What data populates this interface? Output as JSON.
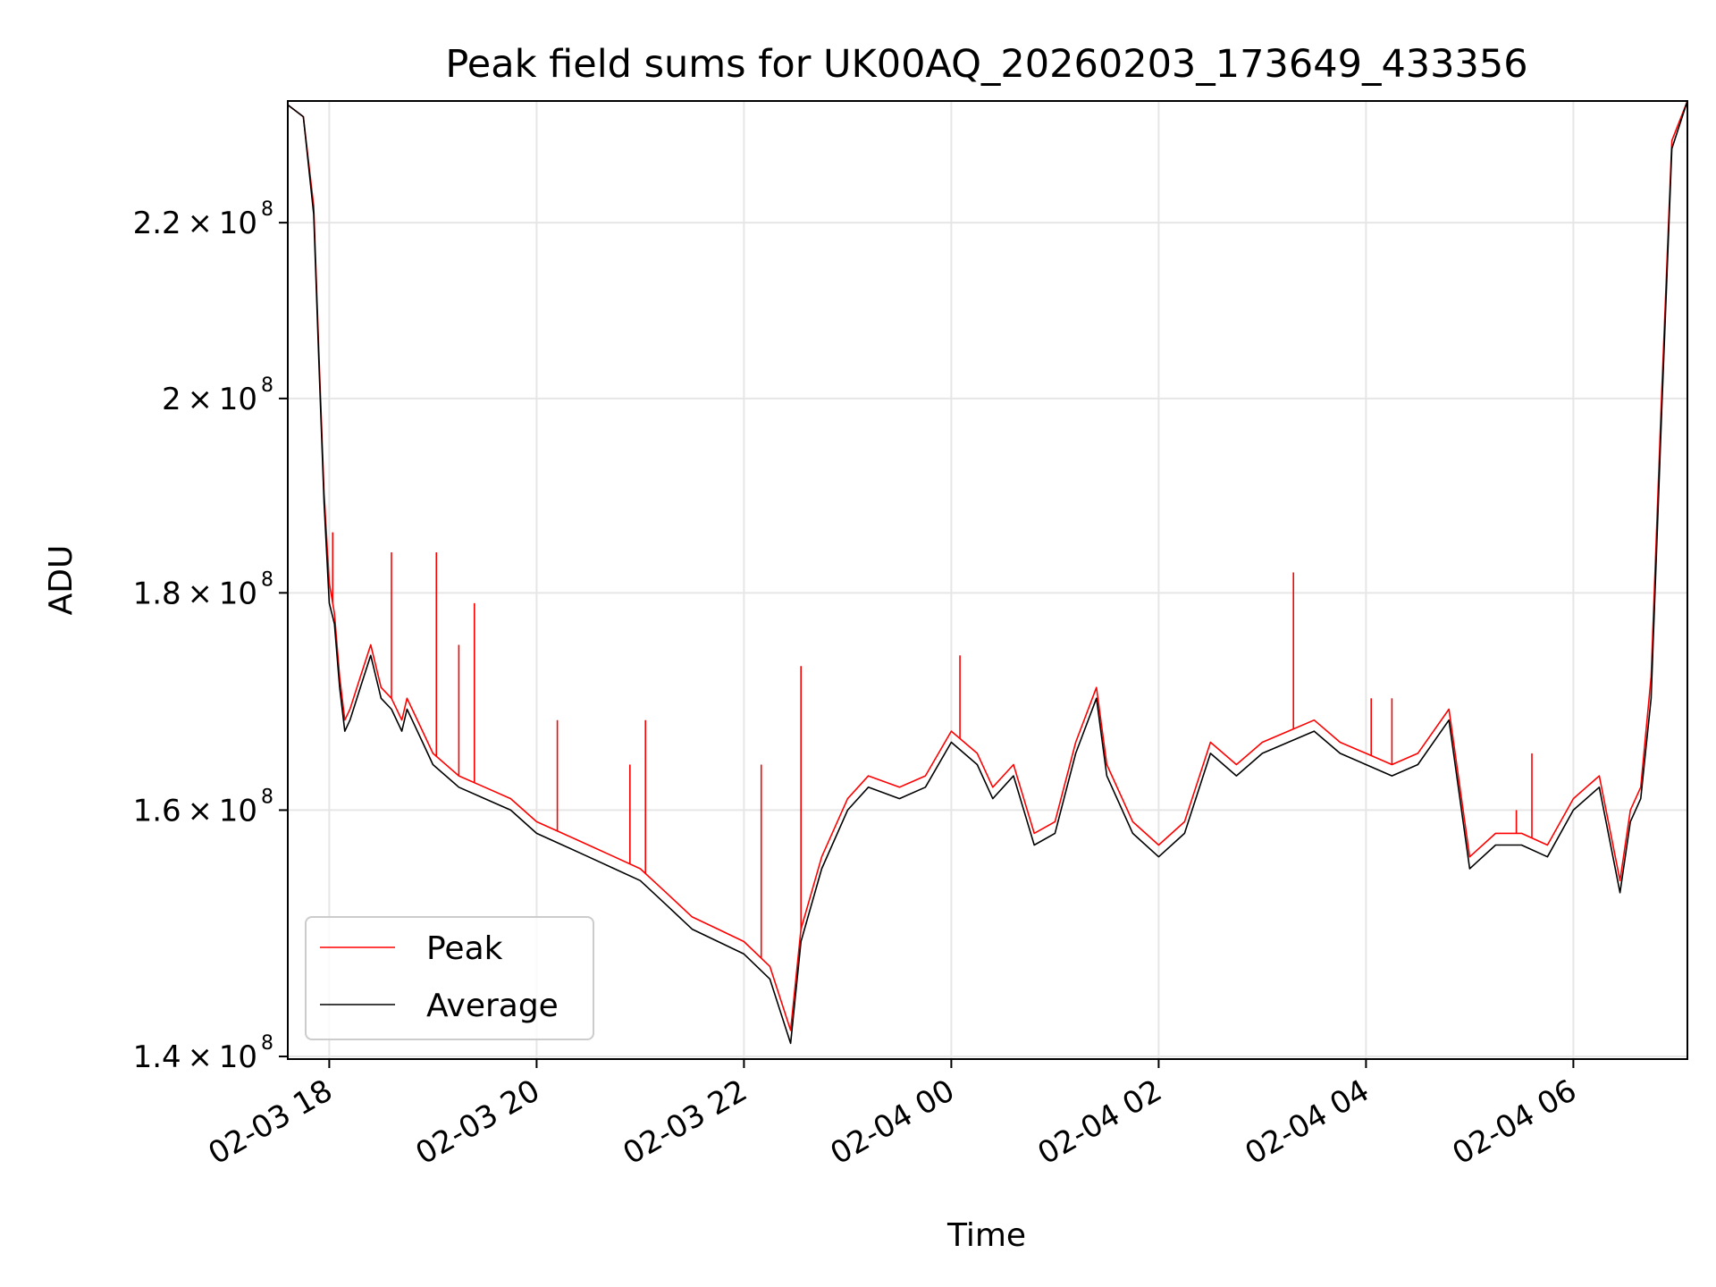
{
  "chart_data": {
    "type": "line",
    "title": "Peak field sums for UK00AQ_20260203_173649_433356",
    "xlabel": "Time",
    "ylabel": "ADU",
    "y_scale": "log",
    "ylim": [
      139800000,
      235000000
    ],
    "xlim": [
      "2026-02-03 17:36",
      "2026-02-04 07:06"
    ],
    "grid": true,
    "legend_position": "lower-left",
    "x_ticks": [
      {
        "value": "2026-02-03 18:00",
        "label": "02-03 18"
      },
      {
        "value": "2026-02-03 20:00",
        "label": "02-03 20"
      },
      {
        "value": "2026-02-03 22:00",
        "label": "02-03 22"
      },
      {
        "value": "2026-02-04 00:00",
        "label": "02-04 00"
      },
      {
        "value": "2026-02-04 02:00",
        "label": "02-04 02"
      },
      {
        "value": "2026-02-04 04:00",
        "label": "02-04 04"
      },
      {
        "value": "2026-02-04 06:00",
        "label": "02-04 06"
      }
    ],
    "y_ticks": [
      {
        "value": 140000000,
        "mantissa": "1.4",
        "exponent": "8"
      },
      {
        "value": 160000000,
        "mantissa": "1.6",
        "exponent": "8"
      },
      {
        "value": 180000000,
        "mantissa": "1.8",
        "exponent": "8"
      },
      {
        "value": 200000000,
        "mantissa": "2",
        "exponent": "8"
      },
      {
        "value": 220000000,
        "mantissa": "2.2",
        "exponent": "8"
      }
    ],
    "series": [
      {
        "name": "Peak",
        "color": "#ff0000",
        "x": [
          "2026-02-03 17:36",
          "2026-02-03 17:45",
          "2026-02-03 17:51",
          "2026-02-03 17:54",
          "2026-02-03 17:57",
          "2026-02-03 18:00",
          "2026-02-03 18:03",
          "2026-02-03 18:06",
          "2026-02-03 18:09",
          "2026-02-03 18:12",
          "2026-02-03 18:18",
          "2026-02-03 18:24",
          "2026-02-03 18:30",
          "2026-02-03 18:36",
          "2026-02-03 18:42",
          "2026-02-03 18:45",
          "2026-02-03 18:48",
          "2026-02-03 18:54",
          "2026-02-03 19:00",
          "2026-02-03 19:15",
          "2026-02-03 19:30",
          "2026-02-03 19:45",
          "2026-02-03 20:00",
          "2026-02-03 20:15",
          "2026-02-03 20:30",
          "2026-02-03 20:45",
          "2026-02-03 21:00",
          "2026-02-03 21:15",
          "2026-02-03 21:30",
          "2026-02-03 21:45",
          "2026-02-03 22:00",
          "2026-02-03 22:15",
          "2026-02-03 22:27",
          "2026-02-03 22:33",
          "2026-02-03 22:45",
          "2026-02-03 23:00",
          "2026-02-03 23:12",
          "2026-02-03 23:30",
          "2026-02-03 23:45",
          "2026-02-04 00:00",
          "2026-02-04 00:15",
          "2026-02-04 00:24",
          "2026-02-04 00:36",
          "2026-02-04 00:48",
          "2026-02-04 01:00",
          "2026-02-04 01:12",
          "2026-02-04 01:24",
          "2026-02-04 01:30",
          "2026-02-04 01:45",
          "2026-02-04 02:00",
          "2026-02-04 02:15",
          "2026-02-04 02:30",
          "2026-02-04 02:45",
          "2026-02-04 03:00",
          "2026-02-04 03:15",
          "2026-02-04 03:30",
          "2026-02-04 03:45",
          "2026-02-04 04:00",
          "2026-02-04 04:15",
          "2026-02-04 04:30",
          "2026-02-04 04:48",
          "2026-02-04 05:00",
          "2026-02-04 05:15",
          "2026-02-04 05:30",
          "2026-02-04 05:45",
          "2026-02-04 06:00",
          "2026-02-04 06:15",
          "2026-02-04 06:27",
          "2026-02-04 06:33",
          "2026-02-04 06:39",
          "2026-02-04 06:45",
          "2026-02-04 06:51",
          "2026-02-04 06:57",
          "2026-02-04 07:06"
        ],
        "values": [
          234500000,
          233000000,
          222000000,
          205000000,
          190000000,
          181000000,
          178000000,
          172000000,
          168000000,
          169000000,
          172000000,
          175000000,
          171000000,
          170000000,
          168000000,
          170000000,
          169000000,
          167000000,
          165000000,
          163000000,
          162000000,
          161000000,
          159000000,
          158000000,
          157000000,
          156000000,
          155000000,
          153000000,
          151000000,
          150000000,
          149000000,
          147000000,
          142000000,
          150000000,
          156000000,
          161000000,
          163000000,
          162000000,
          163000000,
          167000000,
          165000000,
          162000000,
          164000000,
          158000000,
          159000000,
          166000000,
          171000000,
          164000000,
          159000000,
          157000000,
          159000000,
          166000000,
          164000000,
          166000000,
          167000000,
          168000000,
          166000000,
          165000000,
          164000000,
          165000000,
          169000000,
          156000000,
          158000000,
          158000000,
          157000000,
          161000000,
          163000000,
          154000000,
          160000000,
          162000000,
          172000000,
          200000000,
          230000000,
          235000000
        ],
        "spikes": [
          {
            "x": "2026-02-03 18:02",
            "value": 186000000
          },
          {
            "x": "2026-02-03 18:36",
            "value": 184000000
          },
          {
            "x": "2026-02-03 19:02",
            "value": 184000000
          },
          {
            "x": "2026-02-03 19:15",
            "value": 175000000
          },
          {
            "x": "2026-02-03 19:24",
            "value": 179000000
          },
          {
            "x": "2026-02-03 20:12",
            "value": 168000000
          },
          {
            "x": "2026-02-03 20:54",
            "value": 164000000
          },
          {
            "x": "2026-02-03 21:03",
            "value": 168000000
          },
          {
            "x": "2026-02-03 22:10",
            "value": 164000000
          },
          {
            "x": "2026-02-03 22:33",
            "value": 173000000
          },
          {
            "x": "2026-02-04 00:05",
            "value": 174000000
          },
          {
            "x": "2026-02-04 03:18",
            "value": 182000000
          },
          {
            "x": "2026-02-04 04:03",
            "value": 170000000
          },
          {
            "x": "2026-02-04 04:15",
            "value": 170000000
          },
          {
            "x": "2026-02-04 05:27",
            "value": 160000000
          },
          {
            "x": "2026-02-04 05:36",
            "value": 165000000
          }
        ]
      },
      {
        "name": "Average",
        "color": "#000000",
        "x": [
          "2026-02-03 17:36",
          "2026-02-03 17:45",
          "2026-02-03 17:51",
          "2026-02-03 17:54",
          "2026-02-03 17:57",
          "2026-02-03 18:00",
          "2026-02-03 18:03",
          "2026-02-03 18:06",
          "2026-02-03 18:09",
          "2026-02-03 18:12",
          "2026-02-03 18:18",
          "2026-02-03 18:24",
          "2026-02-03 18:30",
          "2026-02-03 18:36",
          "2026-02-03 18:42",
          "2026-02-03 18:45",
          "2026-02-03 18:48",
          "2026-02-03 18:54",
          "2026-02-03 19:00",
          "2026-02-03 19:15",
          "2026-02-03 19:30",
          "2026-02-03 19:45",
          "2026-02-03 20:00",
          "2026-02-03 20:15",
          "2026-02-03 20:30",
          "2026-02-03 20:45",
          "2026-02-03 21:00",
          "2026-02-03 21:15",
          "2026-02-03 21:30",
          "2026-02-03 21:45",
          "2026-02-03 22:00",
          "2026-02-03 22:15",
          "2026-02-03 22:27",
          "2026-02-03 22:33",
          "2026-02-03 22:45",
          "2026-02-03 23:00",
          "2026-02-03 23:12",
          "2026-02-03 23:30",
          "2026-02-03 23:45",
          "2026-02-04 00:00",
          "2026-02-04 00:15",
          "2026-02-04 00:24",
          "2026-02-04 00:36",
          "2026-02-04 00:48",
          "2026-02-04 01:00",
          "2026-02-04 01:12",
          "2026-02-04 01:24",
          "2026-02-04 01:30",
          "2026-02-04 01:45",
          "2026-02-04 02:00",
          "2026-02-04 02:15",
          "2026-02-04 02:30",
          "2026-02-04 02:45",
          "2026-02-04 03:00",
          "2026-02-04 03:15",
          "2026-02-04 03:30",
          "2026-02-04 03:45",
          "2026-02-04 04:00",
          "2026-02-04 04:15",
          "2026-02-04 04:30",
          "2026-02-04 04:48",
          "2026-02-04 05:00",
          "2026-02-04 05:15",
          "2026-02-04 05:30",
          "2026-02-04 05:45",
          "2026-02-04 06:00",
          "2026-02-04 06:15",
          "2026-02-04 06:27",
          "2026-02-04 06:33",
          "2026-02-04 06:39",
          "2026-02-04 06:45",
          "2026-02-04 06:51",
          "2026-02-04 06:57",
          "2026-02-04 07:06"
        ],
        "values": [
          234500000,
          233000000,
          221000000,
          204000000,
          189000000,
          179000000,
          177000000,
          171000000,
          167000000,
          168000000,
          171000000,
          174000000,
          170000000,
          169000000,
          167000000,
          169000000,
          168000000,
          166000000,
          164000000,
          162000000,
          161000000,
          160000000,
          158000000,
          157000000,
          156000000,
          155000000,
          154000000,
          152000000,
          150000000,
          149000000,
          148000000,
          146000000,
          141000000,
          149000000,
          155000000,
          160000000,
          162000000,
          161000000,
          162000000,
          166000000,
          164000000,
          161000000,
          163000000,
          157000000,
          158000000,
          165000000,
          170000000,
          163000000,
          158000000,
          156000000,
          158000000,
          165000000,
          163000000,
          165000000,
          166000000,
          167000000,
          165000000,
          164000000,
          163000000,
          164000000,
          168000000,
          155000000,
          157000000,
          157000000,
          156000000,
          160000000,
          162000000,
          153000000,
          159000000,
          161000000,
          170000000,
          198000000,
          229000000,
          235000000
        ]
      }
    ]
  }
}
